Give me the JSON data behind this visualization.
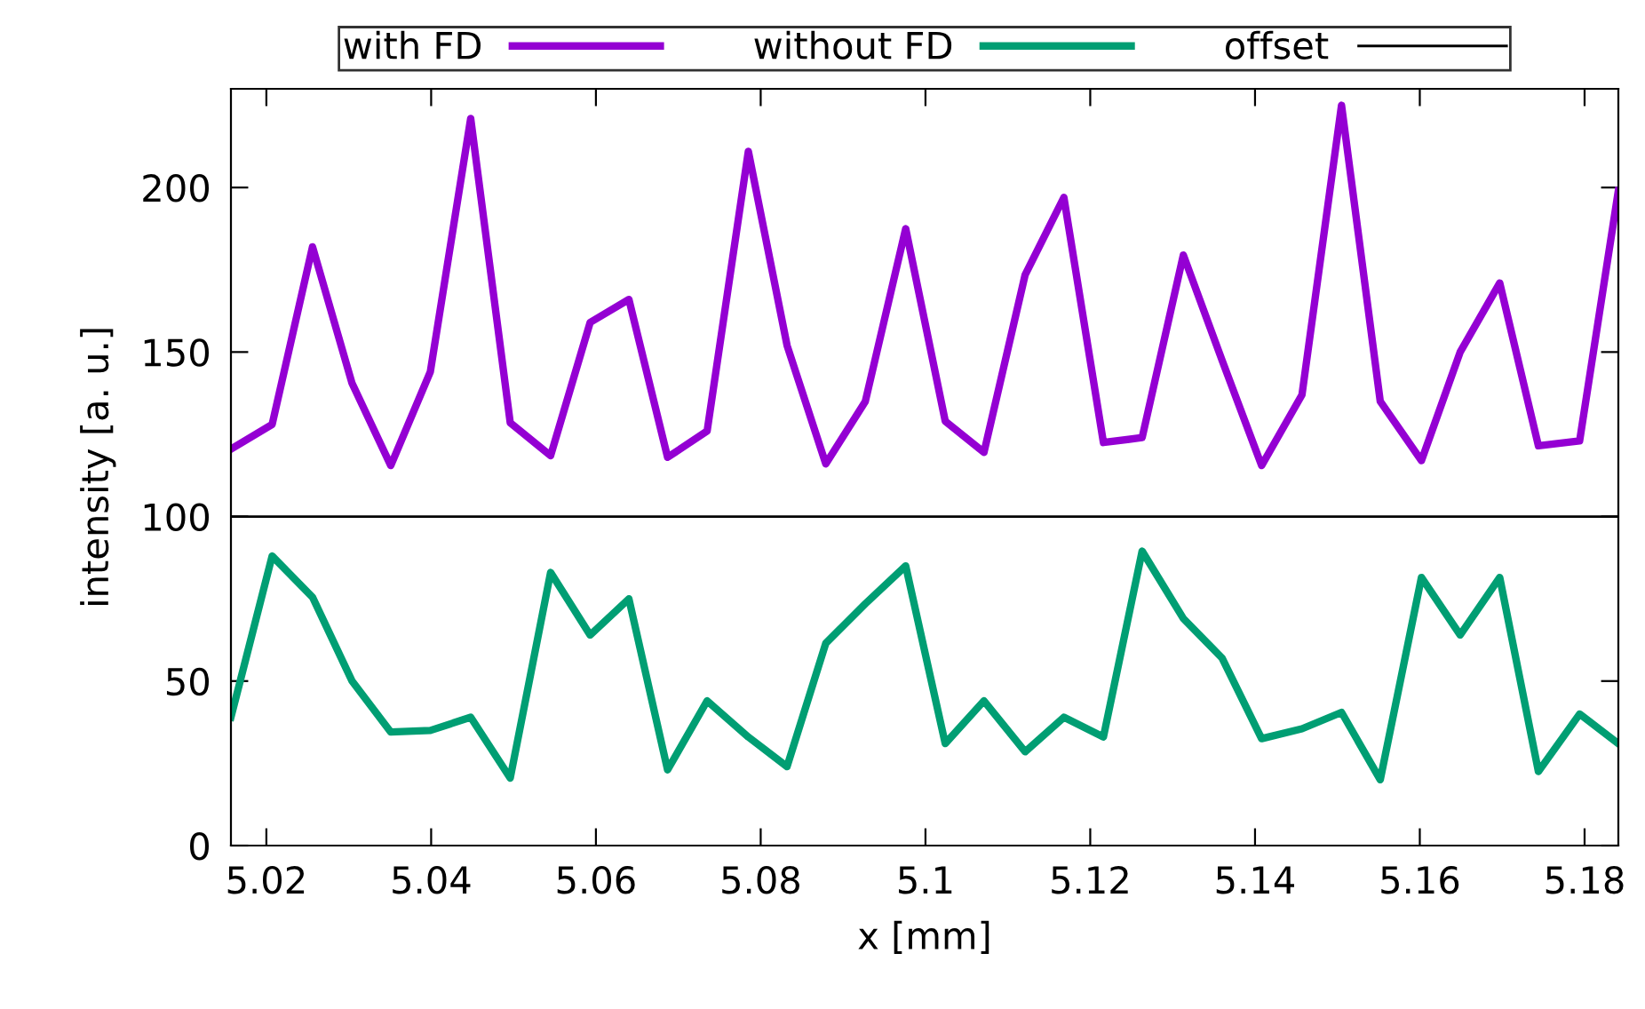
{
  "chart_data": {
    "type": "line",
    "xlabel": "x [mm]",
    "ylabel": "intensity [a. u.]",
    "x": [
      5.0157,
      5.0207,
      5.0256,
      5.0304,
      5.0351,
      5.0399,
      5.0448,
      5.0496,
      5.0545,
      5.0593,
      5.064,
      5.0687,
      5.0735,
      5.0785,
      5.0832,
      5.0879,
      5.0927,
      5.0976,
      5.1024,
      5.1071,
      5.1121,
      5.1168,
      5.1216,
      5.1263,
      5.1313,
      5.136,
      5.1408,
      5.1457,
      5.1505,
      5.1552,
      5.1602,
      5.1649,
      5.1697,
      5.1744,
      5.1794,
      5.1841
    ],
    "series": [
      {
        "name": "with FD",
        "color": "#9400d3",
        "values": [
          120.5,
          128,
          182,
          140.5,
          115.5,
          144,
          221,
          128.5,
          118.5,
          159,
          166,
          118,
          126,
          211,
          152,
          116,
          135,
          187.5,
          129,
          119.5,
          173.5,
          197,
          122.5,
          124,
          179.5,
          147.5,
          115.5,
          137,
          225,
          135,
          117,
          150,
          171,
          121.5,
          123,
          199
        ]
      },
      {
        "name": "without FD",
        "color": "#009e73",
        "values": [
          39,
          88,
          75.5,
          50,
          34.5,
          35,
          39,
          20.5,
          83,
          64,
          75,
          23,
          44,
          33,
          24,
          61.5,
          73.5,
          85,
          31,
          44,
          28.5,
          39,
          33,
          89.5,
          69,
          57,
          32.5,
          35.5,
          40.5,
          20,
          81.5,
          64,
          81.5,
          22.5,
          40,
          31
        ]
      }
    ],
    "ref_lines": [
      {
        "axis": "y",
        "value": 100,
        "label": "offset",
        "color": "#000000"
      }
    ],
    "xlim": [
      5.0157,
      5.1841
    ],
    "ylim": [
      0,
      230
    ],
    "xticks": [
      5.02,
      5.04,
      5.06,
      5.08,
      {
        "value": 5.1,
        "label": "5.1"
      },
      5.12,
      5.14,
      5.16,
      5.18
    ],
    "yticks": [
      0,
      50,
      100,
      150,
      200
    ],
    "grid": false,
    "legend": "top",
    "marker": "none",
    "line_style": "solid"
  }
}
